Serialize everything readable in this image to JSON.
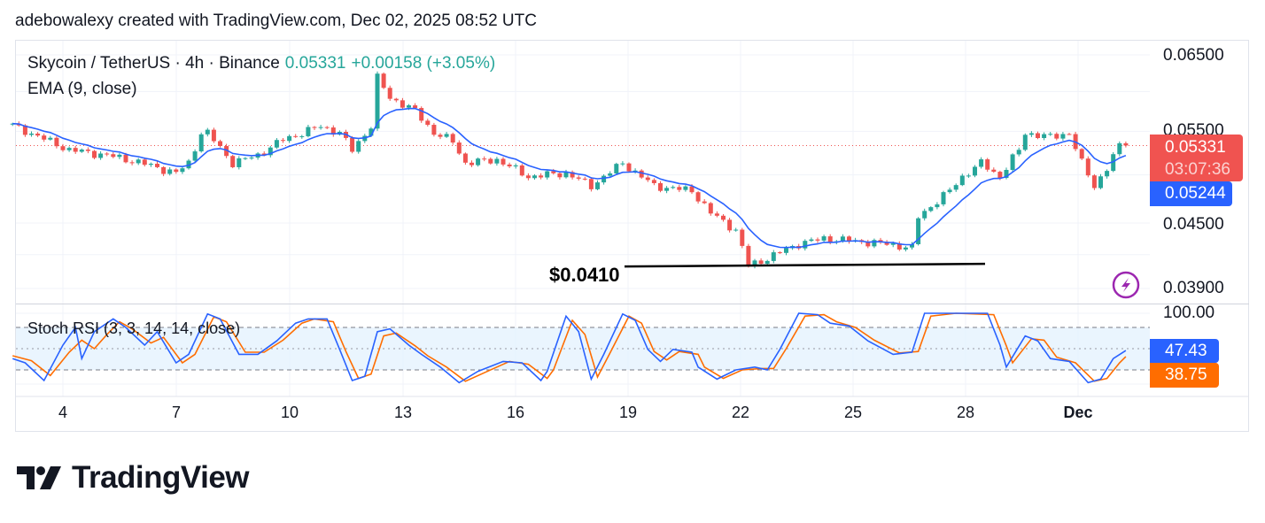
{
  "credit": "adebowalexy created with TradingView.com, Dec 02, 2025 08:52 UTC",
  "legend": {
    "symbol": "Skycoin / TetherUS · 4h · Binance",
    "price": "0.05331",
    "change": "+0.00158 (+3.05%)",
    "ema": "EMA (9, close)",
    "stoch": "Stoch RSI (3, 3, 14, 14, close)"
  },
  "price_axis": [
    "0.06500",
    "0.05500",
    "0.04500",
    "0.03900"
  ],
  "stoch_axis": "100.00",
  "time_axis": [
    "4",
    "7",
    "10",
    "13",
    "16",
    "19",
    "22",
    "25",
    "28",
    "Dec"
  ],
  "labels": {
    "last_price": "0.05331",
    "countdown": "03:07:36",
    "ema_value": "0.05244",
    "k_value": "47.43",
    "d_value": "38.75"
  },
  "annotation": {
    "support_label": "$0.0410",
    "support_price": 0.041
  },
  "brand": "TradingView",
  "colors": {
    "up": "#26a69a",
    "down": "#ef5350",
    "ema": "#2962ff",
    "k": "#2962ff",
    "d": "#ff6d00",
    "band": "#e3f2fd",
    "alert_icon": "#9c27b0"
  },
  "chart_data": {
    "type": "candlestick",
    "interval": "4h",
    "scale": "log",
    "ylim": [
      0.0385,
      0.0665
    ],
    "grid": true,
    "close_path": [
      [
        "11-02 16:00",
        0.0557
      ],
      [
        "11-04 04:00",
        0.0528
      ],
      [
        "11-05 04:00",
        0.0522
      ],
      [
        "11-06 00:00",
        0.0514
      ],
      [
        "11-07 00:00",
        0.0502
      ],
      [
        "11-07 08:00",
        0.0513
      ],
      [
        "11-07 16:00",
        0.0548
      ],
      [
        "11-07 20:00",
        0.0548
      ],
      [
        "11-08 12:00",
        0.0513
      ],
      [
        "11-09 04:00",
        0.0522
      ],
      [
        "11-09 20:00",
        0.054
      ],
      [
        "11-10 20:00",
        0.0556
      ],
      [
        "11-11 08:00",
        0.0548
      ],
      [
        "11-11 16:00",
        0.0528
      ],
      [
        "11-12 04:00",
        0.0556
      ],
      [
        "11-12 08:00",
        0.0618
      ],
      [
        "11-12 16:00",
        0.0592
      ],
      [
        "11-13 08:00",
        0.0575
      ],
      [
        "11-13 20:00",
        0.0548
      ],
      [
        "11-14 08:00",
        0.0538
      ],
      [
        "11-14 16:00",
        0.0513
      ],
      [
        "11-15 12:00",
        0.0517
      ],
      [
        "11-16 08:00",
        0.0498
      ],
      [
        "11-17 08:00",
        0.0502
      ],
      [
        "11-18 00:00",
        0.0488
      ],
      [
        "11-18 20:00",
        0.0513
      ],
      [
        "11-19 16:00",
        0.0488
      ],
      [
        "11-20 16:00",
        0.0483
      ],
      [
        "11-21 04:00",
        0.046
      ],
      [
        "11-21 20:00",
        0.0443
      ],
      [
        "11-22 04:00",
        0.041
      ],
      [
        "11-22 12:00",
        0.0414
      ],
      [
        "11-23 12:00",
        0.043
      ],
      [
        "11-24 04:00",
        0.0435
      ],
      [
        "11-24 20:00",
        0.0433
      ],
      [
        "11-25 20:00",
        0.043
      ],
      [
        "11-26 12:00",
        0.0426
      ],
      [
        "11-26 16:00",
        0.0456
      ],
      [
        "11-27 12:00",
        0.0483
      ],
      [
        "11-27 20:00",
        0.0498
      ],
      [
        "11-28 08:00",
        0.0513
      ],
      [
        "11-28 20:00",
        0.0498
      ],
      [
        "11-29 08:00",
        0.0528
      ],
      [
        "11-29 12:00",
        0.0548
      ],
      [
        "11-30 04:00",
        0.0543
      ],
      [
        "11-30 16:00",
        0.0548
      ],
      [
        "12-01 00:00",
        0.0513
      ],
      [
        "12-01 08:00",
        0.0488
      ],
      [
        "12-01 16:00",
        0.0507
      ],
      [
        "12-02 00:00",
        0.0533
      ],
      [
        "12-02 04:00",
        0.05331
      ]
    ],
    "stoch_rsi": {
      "ylim": [
        0,
        100
      ],
      "bands": [
        20,
        80
      ],
      "k": [
        [
          "11-02 16:00",
          36
        ],
        [
          "11-03 00:00",
          30
        ],
        [
          "11-03 12:00",
          5
        ],
        [
          "11-04 00:00",
          55
        ],
        [
          "11-04 08:00",
          80
        ],
        [
          "11-04 12:00",
          36
        ],
        [
          "11-04 20:00",
          74
        ],
        [
          "11-05 08:00",
          92
        ],
        [
          "11-05 16:00",
          80
        ],
        [
          "11-06 04:00",
          55
        ],
        [
          "11-06 12:00",
          74
        ],
        [
          "11-07 00:00",
          30
        ],
        [
          "11-07 08:00",
          42
        ],
        [
          "11-07 20:00",
          99
        ],
        [
          "11-08 04:00",
          92
        ],
        [
          "11-08 16:00",
          42
        ],
        [
          "11-09 04:00",
          42
        ],
        [
          "11-09 16:00",
          61
        ],
        [
          "11-10 04:00",
          86
        ],
        [
          "11-10 12:00",
          92
        ],
        [
          "11-11 00:00",
          92
        ],
        [
          "11-11 08:00",
          49
        ],
        [
          "11-11 16:00",
          5
        ],
        [
          "11-12 00:00",
          11
        ],
        [
          "11-12 08:00",
          74
        ],
        [
          "11-12 16:00",
          78
        ],
        [
          "11-13 04:00",
          55
        ],
        [
          "11-13 12:00",
          42
        ],
        [
          "11-14 00:00",
          24
        ],
        [
          "11-14 12:00",
          2
        ],
        [
          "11-15 00:00",
          18
        ],
        [
          "11-15 16:00",
          32
        ],
        [
          "11-16 04:00",
          30
        ],
        [
          "11-16 16:00",
          5
        ],
        [
          "11-16 20:00",
          18
        ],
        [
          "11-17 08:00",
          96
        ],
        [
          "11-17 16:00",
          74
        ],
        [
          "11-18 00:00",
          7
        ],
        [
          "11-18 08:00",
          42
        ],
        [
          "11-18 20:00",
          99
        ],
        [
          "11-19 04:00",
          90
        ],
        [
          "11-19 12:00",
          49
        ],
        [
          "11-19 20:00",
          32
        ],
        [
          "11-20 04:00",
          49
        ],
        [
          "11-20 16:00",
          45
        ],
        [
          "11-20 20:00",
          24
        ],
        [
          "11-21 08:00",
          7
        ],
        [
          "11-21 20:00",
          20
        ],
        [
          "11-22 08:00",
          24
        ],
        [
          "11-22 16:00",
          20
        ],
        [
          "11-23 00:00",
          49
        ],
        [
          "11-23 12:00",
          100
        ],
        [
          "11-24 00:00",
          98
        ],
        [
          "11-24 08:00",
          86
        ],
        [
          "11-24 20:00",
          82
        ],
        [
          "11-25 08:00",
          61
        ],
        [
          "11-26 00:00",
          42
        ],
        [
          "11-26 12:00",
          45
        ],
        [
          "11-26 20:00",
          100
        ],
        [
          "11-27 12:00",
          100
        ],
        [
          "11-28 12:00",
          100
        ],
        [
          "11-28 20:00",
          55
        ],
        [
          "11-29 00:00",
          24
        ],
        [
          "11-29 12:00",
          68
        ],
        [
          "11-29 20:00",
          61
        ],
        [
          "11-30 04:00",
          36
        ],
        [
          "11-30 16:00",
          32
        ],
        [
          "12-01 04:00",
          2
        ],
        [
          "12-01 12:00",
          7
        ],
        [
          "12-01 20:00",
          36
        ],
        [
          "12-02 04:00",
          47.43
        ]
      ],
      "d": [
        [
          "11-02 16:00",
          40
        ],
        [
          "11-03 04:00",
          33
        ],
        [
          "11-03 16:00",
          12
        ],
        [
          "11-04 04:00",
          45
        ],
        [
          "11-04 12:00",
          62
        ],
        [
          "11-04 20:00",
          50
        ],
        [
          "11-05 04:00",
          70
        ],
        [
          "11-05 12:00",
          88
        ],
        [
          "11-05 20:00",
          78
        ],
        [
          "11-06 08:00",
          58
        ],
        [
          "11-06 16:00",
          66
        ],
        [
          "11-07 04:00",
          30
        ],
        [
          "11-07 12:00",
          42
        ],
        [
          "11-08 00:00",
          95
        ],
        [
          "11-08 08:00",
          88
        ],
        [
          "11-08 20:00",
          45
        ],
        [
          "11-09 08:00",
          45
        ],
        [
          "11-09 20:00",
          62
        ],
        [
          "11-10 08:00",
          86
        ],
        [
          "11-10 16:00",
          92
        ],
        [
          "11-11 04:00",
          88
        ],
        [
          "11-11 12:00",
          46
        ],
        [
          "11-11 20:00",
          8
        ],
        [
          "11-12 04:00",
          14
        ],
        [
          "11-12 12:00",
          68
        ],
        [
          "11-12 20:00",
          72
        ],
        [
          "11-13 08:00",
          54
        ],
        [
          "11-13 16:00",
          40
        ],
        [
          "11-14 04:00",
          24
        ],
        [
          "11-14 16:00",
          4
        ],
        [
          "11-15 04:00",
          16
        ],
        [
          "11-15 20:00",
          32
        ],
        [
          "11-16 08:00",
          28
        ],
        [
          "11-16 20:00",
          8
        ],
        [
          "11-17 00:00",
          20
        ],
        [
          "11-17 12:00",
          90
        ],
        [
          "11-17 20:00",
          70
        ],
        [
          "11-18 04:00",
          10
        ],
        [
          "11-18 12:00",
          44
        ],
        [
          "11-19 00:00",
          96
        ],
        [
          "11-19 08:00",
          86
        ],
        [
          "11-19 16:00",
          46
        ],
        [
          "11-20 00:00",
          34
        ],
        [
          "11-20 08:00",
          46
        ],
        [
          "11-20 20:00",
          42
        ],
        [
          "11-21 00:00",
          24
        ],
        [
          "11-21 12:00",
          8
        ],
        [
          "11-22 00:00",
          20
        ],
        [
          "11-22 12:00",
          22
        ],
        [
          "11-22 20:00",
          22
        ],
        [
          "11-23 04:00",
          50
        ],
        [
          "11-23 16:00",
          96
        ],
        [
          "11-24 04:00",
          98
        ],
        [
          "11-24 12:00",
          88
        ],
        [
          "11-25 00:00",
          80
        ],
        [
          "11-25 12:00",
          62
        ],
        [
          "11-26 04:00",
          44
        ],
        [
          "11-26 16:00",
          46
        ],
        [
          "11-27 00:00",
          96
        ],
        [
          "11-27 16:00",
          100
        ],
        [
          "11-28 16:00",
          98
        ],
        [
          "11-29 00:00",
          54
        ],
        [
          "11-29 04:00",
          30
        ],
        [
          "11-29 16:00",
          64
        ],
        [
          "11-30 00:00",
          62
        ],
        [
          "11-30 08:00",
          38
        ],
        [
          "11-30 20:00",
          30
        ],
        [
          "12-01 08:00",
          4
        ],
        [
          "12-01 16:00",
          8
        ],
        [
          "12-02 00:00",
          30
        ],
        [
          "12-02 04:00",
          38.75
        ]
      ]
    }
  }
}
